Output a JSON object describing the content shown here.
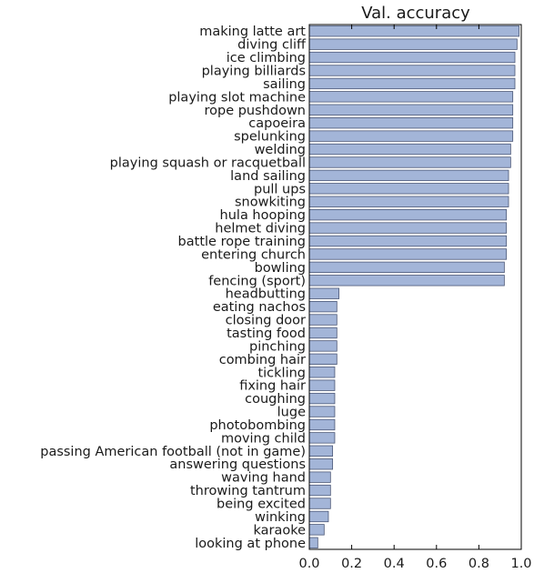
{
  "chart_data": {
    "type": "bar",
    "orientation": "horizontal",
    "title": "Val. accuracy",
    "xlabel": "",
    "ylabel": "",
    "xlim": [
      0,
      1.0
    ],
    "xticks": [
      "0.0",
      "0.2",
      "0.4",
      "0.6",
      "0.8",
      "1.0"
    ],
    "grid": false,
    "bar_color": "#a3b5d8",
    "bar_edge_color": "#4a5675",
    "categories": [
      "making latte art",
      "diving cliff",
      "ice climbing",
      "playing billiards",
      "sailing",
      "playing slot machine",
      "rope pushdown",
      "capoeira",
      "spelunking",
      "welding",
      "playing squash or racquetball",
      "land sailing",
      "pull ups",
      "snowkiting",
      "hula hooping",
      "helmet diving",
      "battle rope training",
      "entering church",
      "bowling",
      "fencing (sport)",
      "headbutting",
      "eating nachos",
      "closing door",
      "tasting food",
      "pinching",
      "combing hair",
      "tickling",
      "fixing hair",
      "coughing",
      "luge",
      "photobombing",
      "moving child",
      "passing American football (not in game)",
      "answering questions",
      "waving hand",
      "throwing tantrum",
      "being excited",
      "winking",
      "karaoke",
      "looking at phone"
    ],
    "values": [
      0.99,
      0.98,
      0.97,
      0.97,
      0.97,
      0.96,
      0.96,
      0.96,
      0.96,
      0.95,
      0.95,
      0.94,
      0.94,
      0.94,
      0.93,
      0.93,
      0.93,
      0.93,
      0.92,
      0.92,
      0.14,
      0.13,
      0.13,
      0.13,
      0.13,
      0.13,
      0.12,
      0.12,
      0.12,
      0.12,
      0.12,
      0.12,
      0.11,
      0.11,
      0.1,
      0.1,
      0.1,
      0.09,
      0.07,
      0.04
    ]
  }
}
